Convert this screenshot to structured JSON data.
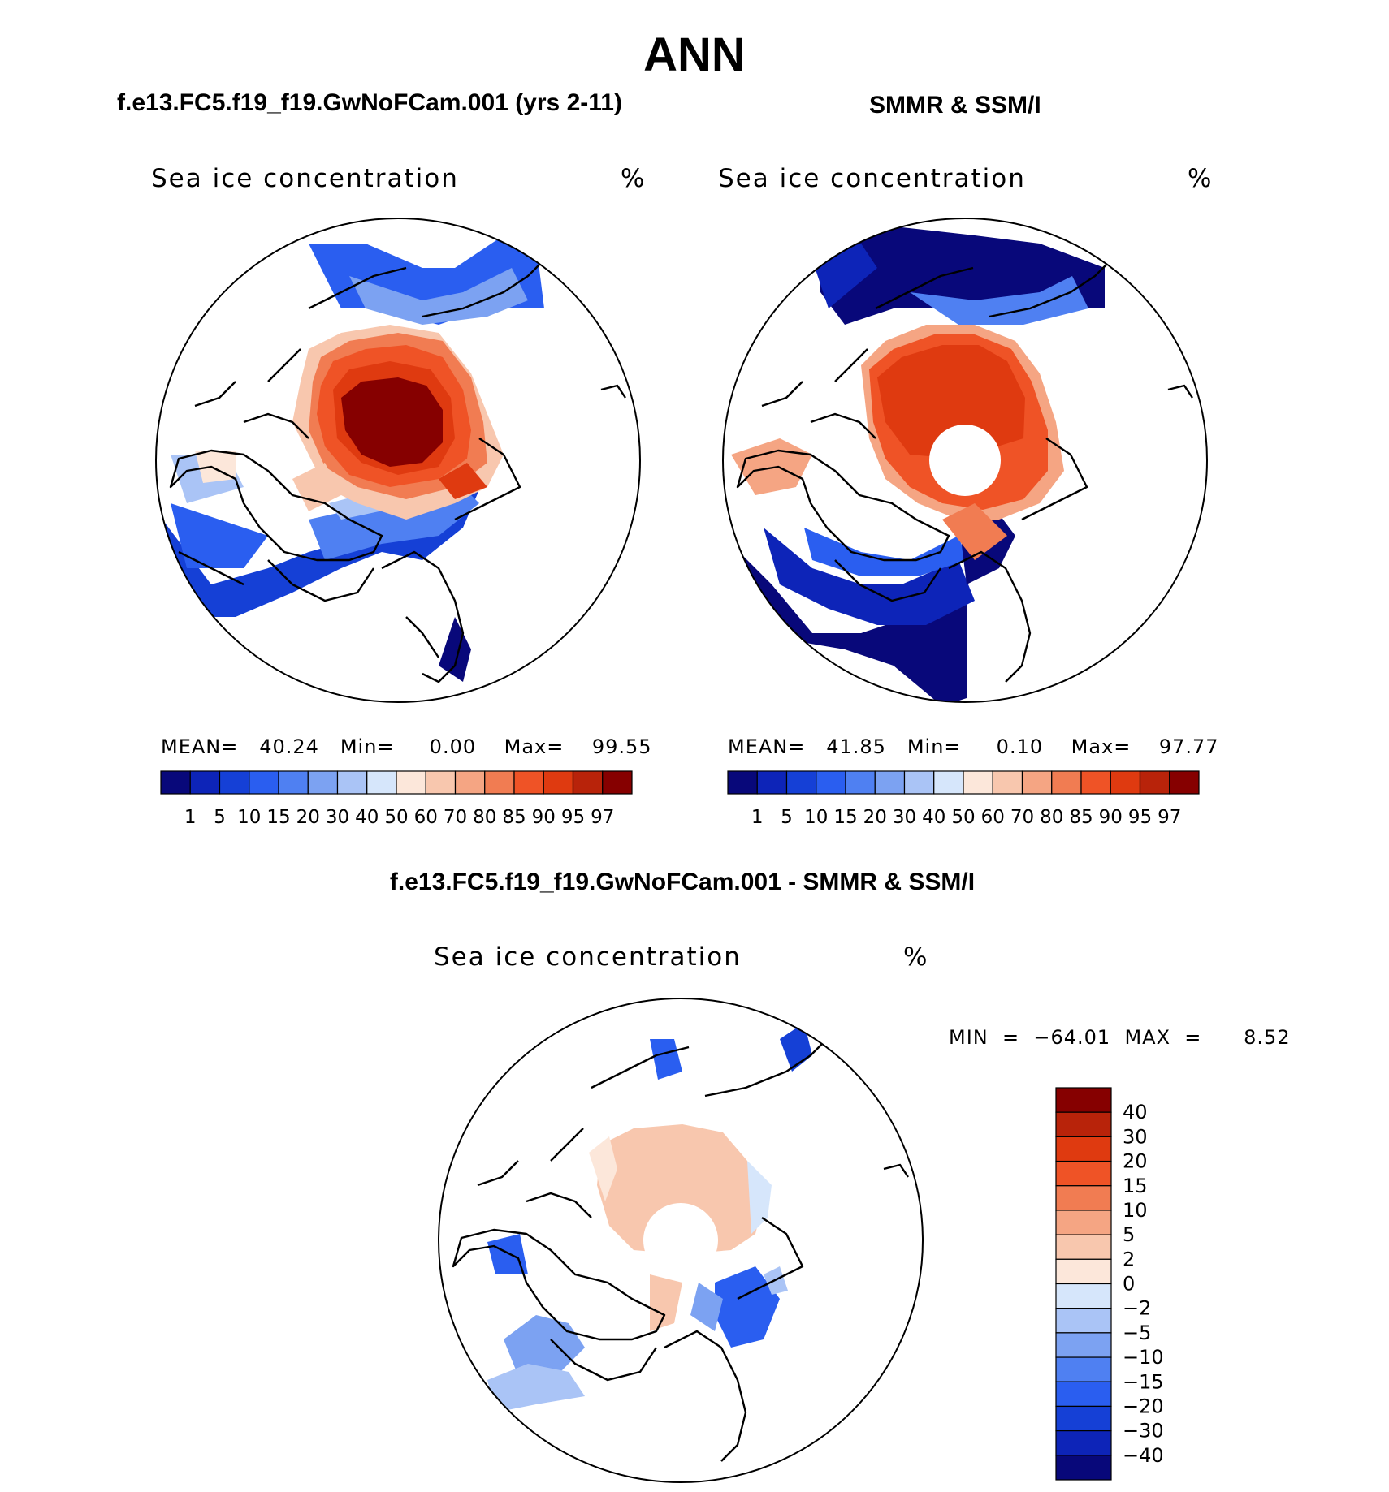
{
  "figure": {
    "title": "ANN",
    "diff_title": "f.e13.FC5.f19_f19.GwNoFCam.001 - SMMR & SSM/I"
  },
  "colors": {
    "abs_scale": [
      "#08087a",
      "#0d24b8",
      "#1540d6",
      "#2a5ef0",
      "#4f80f2",
      "#7ca2f2",
      "#aac4f6",
      "#d6e6fb",
      "#fce7da",
      "#f8c7ae",
      "#f5a583",
      "#f17c52",
      "#ef5326",
      "#df3a10",
      "#b8230a",
      "#860000"
    ],
    "diff_scale": [
      "#860000",
      "#b8230a",
      "#df3a10",
      "#ef5326",
      "#f17c52",
      "#f5a583",
      "#f8c7ae",
      "#fce7da",
      "#d6e6fb",
      "#aac4f6",
      "#7ca2f2",
      "#4f80f2",
      "#2a5ef0",
      "#1540d6",
      "#0d24b8",
      "#08087a"
    ]
  },
  "panels": {
    "model": {
      "heading": "f.e13.FC5.f19_f19.GwNoFCam.001 (yrs 2-11)",
      "variable": "Sea ice concentration",
      "units": "%",
      "stats": "MEAN=   40.24   Min=     0.00    Max=    99.55"
    },
    "obs": {
      "heading": "SMMR & SSM/I",
      "variable": "Sea ice concentration",
      "units": "%",
      "stats": "MEAN=   41.85   Min=     0.10    Max=    97.77"
    },
    "diff": {
      "variable": "Sea ice concentration",
      "units": "%",
      "stats": "MIN  =  −64.01  MAX  =      8.52"
    }
  },
  "chart_data": [
    {
      "type": "heatmap",
      "name": "model",
      "projection": "polar stereographic (north)",
      "title": "Sea ice concentration",
      "units": "%",
      "mean": 40.24,
      "min": 0.0,
      "max": 99.55,
      "colorbar_levels": [
        "1",
        "5",
        "10",
        "15",
        "20",
        "30",
        "40",
        "50",
        "60",
        "70",
        "80",
        "85",
        "90",
        "95",
        "97"
      ]
    },
    {
      "type": "heatmap",
      "name": "obs",
      "projection": "polar stereographic (north)",
      "title": "Sea ice concentration",
      "units": "%",
      "mean": 41.85,
      "min": 0.1,
      "max": 97.77,
      "colorbar_levels": [
        "1",
        "5",
        "10",
        "15",
        "20",
        "30",
        "40",
        "50",
        "60",
        "70",
        "80",
        "85",
        "90",
        "95",
        "97"
      ]
    },
    {
      "type": "heatmap",
      "name": "difference",
      "projection": "polar stereographic (north)",
      "title": "Sea ice concentration",
      "units": "%",
      "min": -64.01,
      "max": 8.52,
      "colorbar_levels": [
        "40",
        "30",
        "20",
        "15",
        "10",
        "5",
        "2",
        "0",
        "−2",
        "−5",
        "−10",
        "−15",
        "−20",
        "−30",
        "−40"
      ]
    }
  ]
}
